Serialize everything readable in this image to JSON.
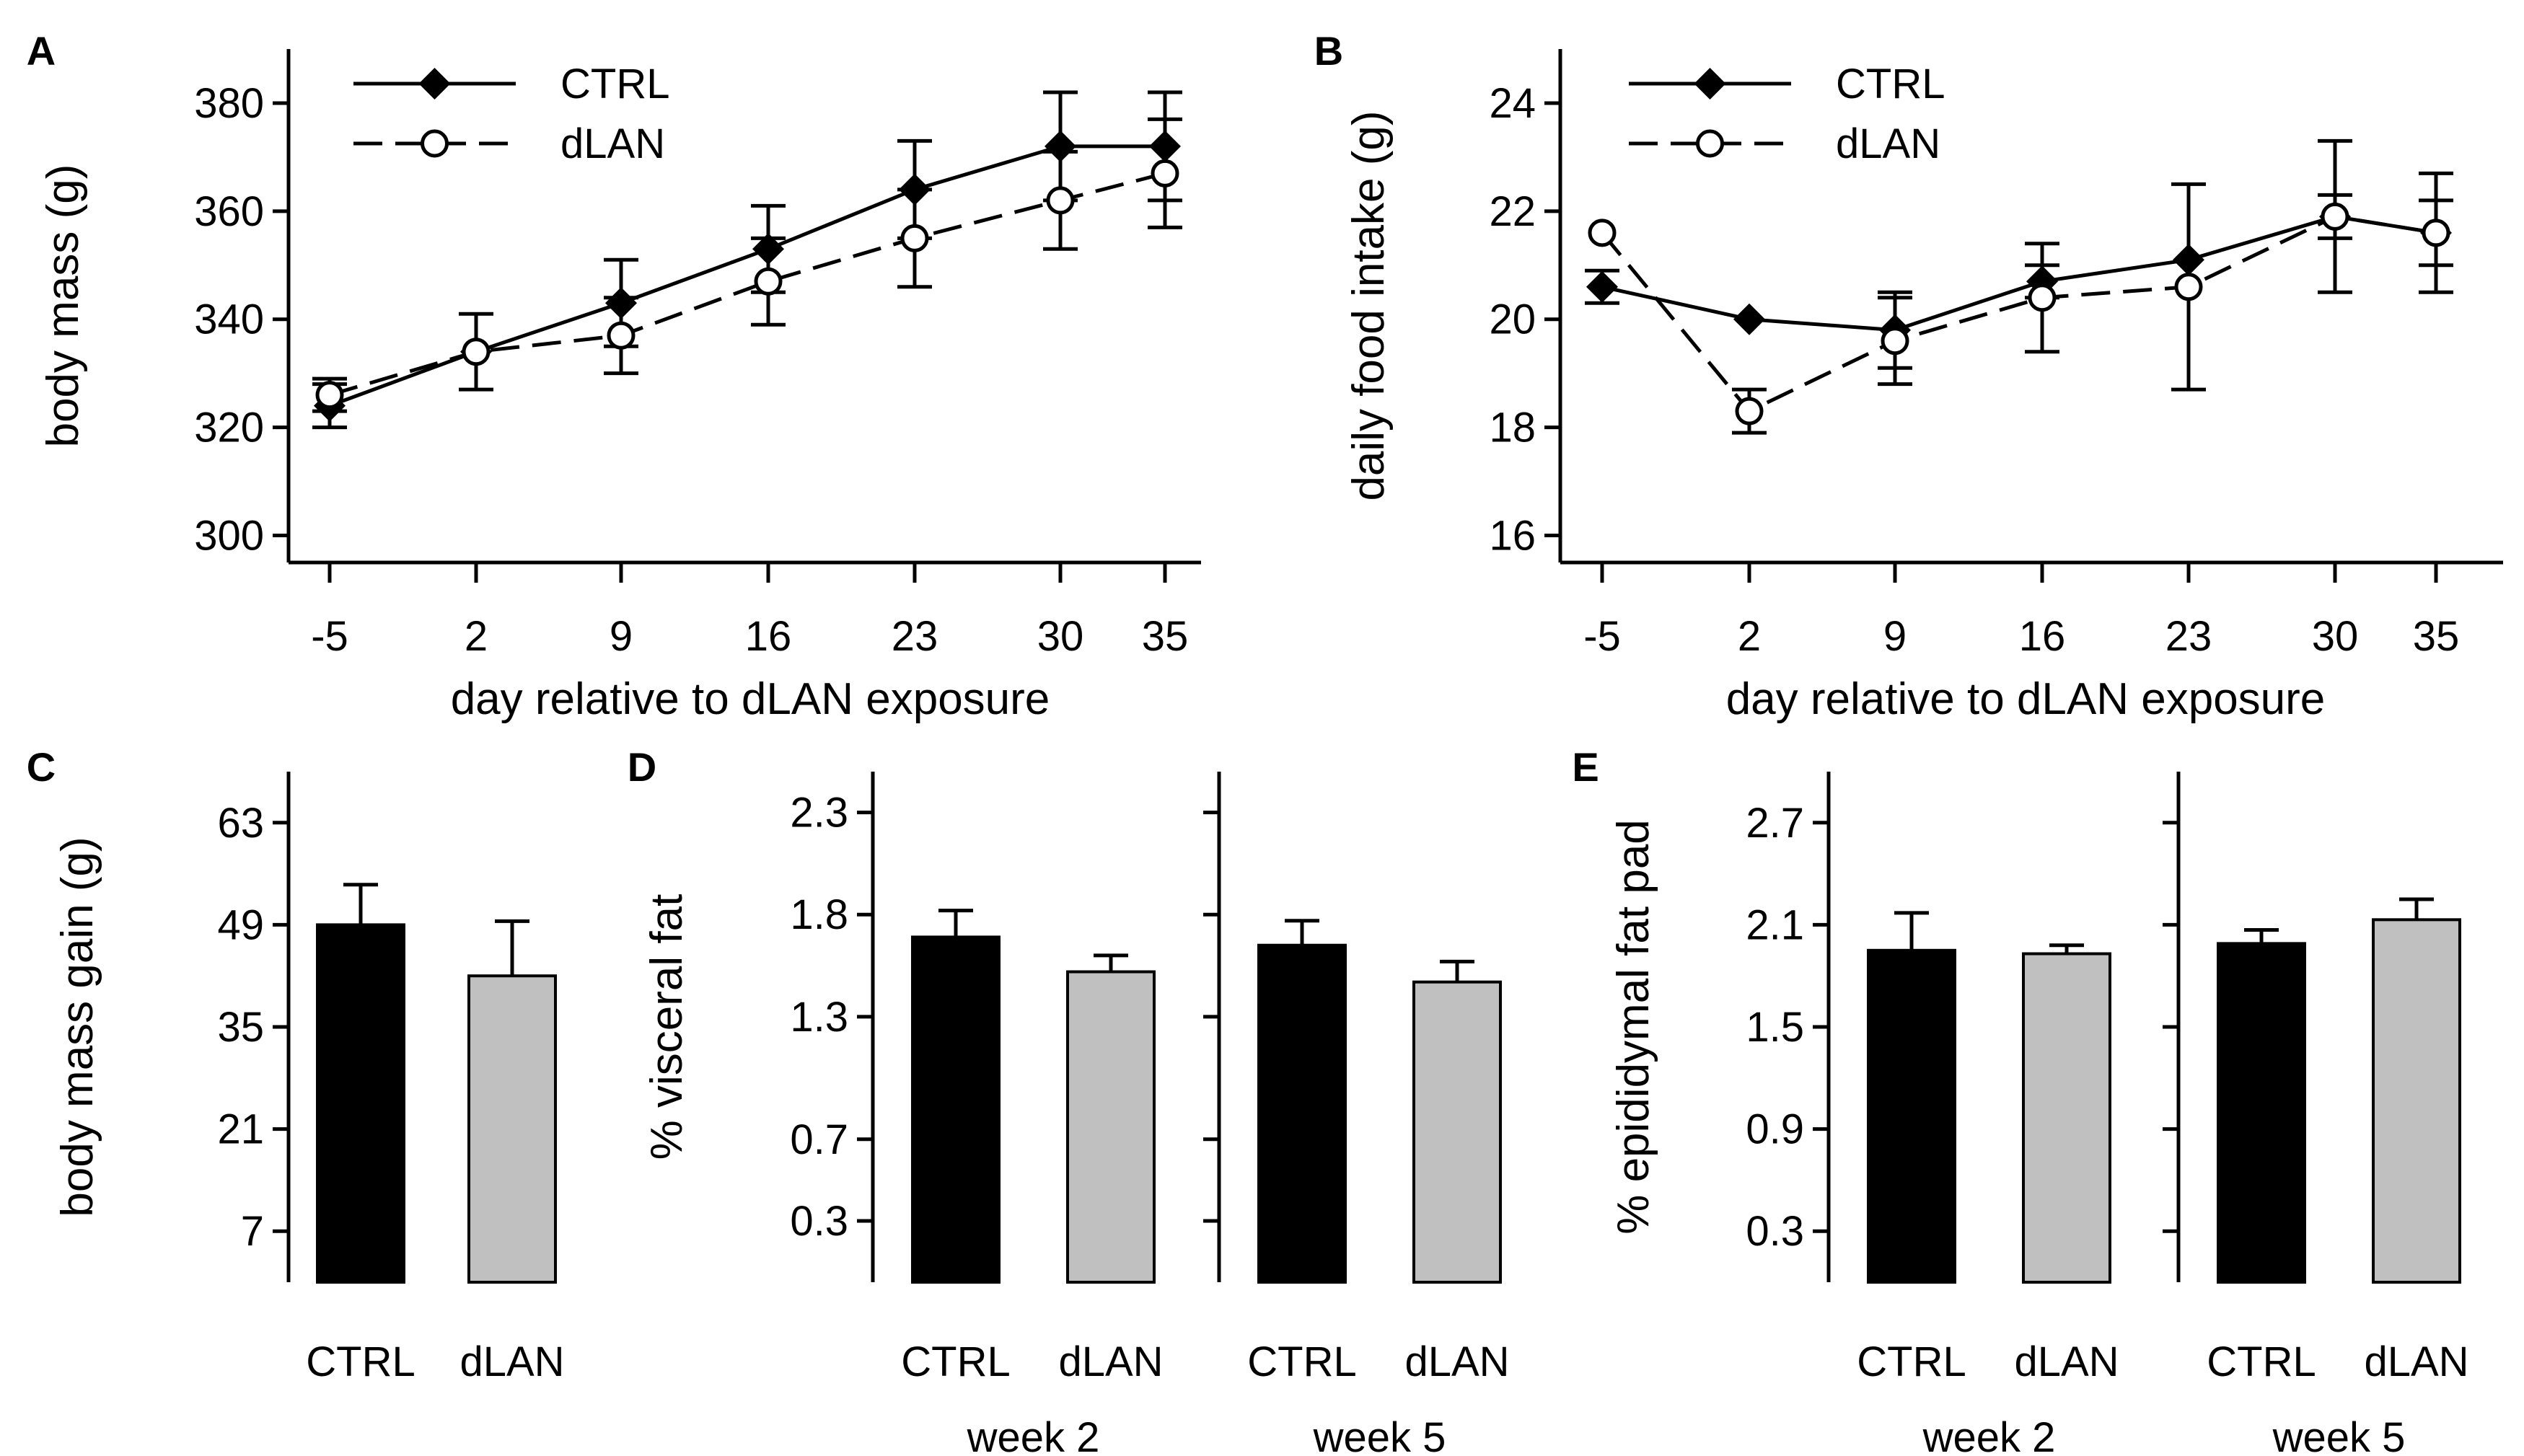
{
  "chart_data": [
    {
      "panel": "A",
      "type": "line",
      "xlabel": "day relative to dLAN exposure",
      "ylabel": "body mass (g)",
      "x": [
        -5,
        2,
        9,
        16,
        23,
        30,
        35
      ],
      "x_tick_labels": [
        "-5",
        "2",
        "9",
        "16",
        "23",
        "30",
        "35"
      ],
      "ylim": [
        295,
        390
      ],
      "y_ticks": [
        300,
        320,
        340,
        360,
        380
      ],
      "legend": "top-left",
      "series": [
        {
          "name": "CTRL",
          "marker": "filled-diamond",
          "line": "solid",
          "values": [
            324,
            334,
            343,
            353,
            364,
            372,
            372
          ],
          "err": [
            4,
            0,
            8,
            8,
            9,
            10,
            10
          ]
        },
        {
          "name": "dLAN",
          "marker": "open-circle",
          "line": "dashed",
          "values": [
            326,
            334,
            337,
            347,
            355,
            362,
            367
          ],
          "err": [
            3,
            7,
            7,
            8,
            9,
            9,
            10
          ]
        }
      ]
    },
    {
      "panel": "B",
      "type": "line",
      "xlabel": "day relative to dLAN exposure",
      "ylabel": "daily food intake (g)",
      "x": [
        -5,
        2,
        9,
        16,
        23,
        30,
        35
      ],
      "x_tick_labels": [
        "-5",
        "2",
        "9",
        "16",
        "23",
        "30",
        "35"
      ],
      "ylim": [
        15.5,
        25
      ],
      "y_ticks": [
        16,
        18,
        20,
        22,
        24
      ],
      "legend": "top-left",
      "series": [
        {
          "name": "CTRL",
          "marker": "filled-diamond",
          "line": "solid",
          "values": [
            20.6,
            20.0,
            19.8,
            20.7,
            21.1,
            21.9,
            21.6
          ],
          "err": [
            0.3,
            0,
            0.7,
            0.3,
            0,
            0.4,
            0.6
          ]
        },
        {
          "name": "dLAN",
          "marker": "open-circle",
          "line": "dashed",
          "values": [
            21.6,
            18.3,
            19.6,
            20.4,
            20.6,
            21.9,
            21.6
          ],
          "err": [
            0,
            0.4,
            0.8,
            1.0,
            1.9,
            1.4,
            1.1
          ]
        }
      ]
    },
    {
      "panel": "C",
      "type": "bar",
      "ylabel": "body mass gain (g)",
      "ylim": [
        0,
        70
      ],
      "y_ticks": [
        7,
        21,
        35,
        49,
        63
      ],
      "groups": [
        {
          "label": "",
          "categories": [
            "CTRL",
            "dLAN"
          ],
          "values": [
            49,
            42
          ],
          "err": [
            5.5,
            7.5
          ]
        }
      ]
    },
    {
      "panel": "D",
      "type": "bar",
      "ylabel": "% visceral fat",
      "ylim": [
        0,
        2.5
      ],
      "y_ticks": [
        0.3,
        0.7,
        1.3,
        1.8,
        2.3
      ],
      "y_tick_labels": [
        "0.3",
        "0.7",
        "1.3",
        "1.8",
        "2.3"
      ],
      "groups": [
        {
          "label": "week 2",
          "categories": [
            "CTRL",
            "dLAN"
          ],
          "values": [
            1.69,
            1.52
          ],
          "err": [
            0.13,
            0.08
          ]
        },
        {
          "label": "week 5",
          "categories": [
            "CTRL",
            "dLAN"
          ],
          "values": [
            1.65,
            1.47
          ],
          "err": [
            0.12,
            0.1
          ]
        }
      ]
    },
    {
      "panel": "E",
      "type": "bar",
      "ylabel": "% epididymal fat pad",
      "ylim": [
        0,
        3.0
      ],
      "y_ticks": [
        0.3,
        0.9,
        1.5,
        2.1,
        2.7
      ],
      "groups": [
        {
          "label": "week 2",
          "categories": [
            "CTRL",
            "dLAN"
          ],
          "values": [
            1.95,
            1.93
          ],
          "err": [
            0.22,
            0.05
          ]
        },
        {
          "label": "week 5",
          "categories": [
            "CTRL",
            "dLAN"
          ],
          "values": [
            1.99,
            2.13
          ],
          "err": [
            0.08,
            0.12
          ]
        }
      ]
    }
  ],
  "colors": {
    "ctrl_bar": "#000000",
    "dlan_bar": "#c0c0c0",
    "axis": "#000000"
  }
}
